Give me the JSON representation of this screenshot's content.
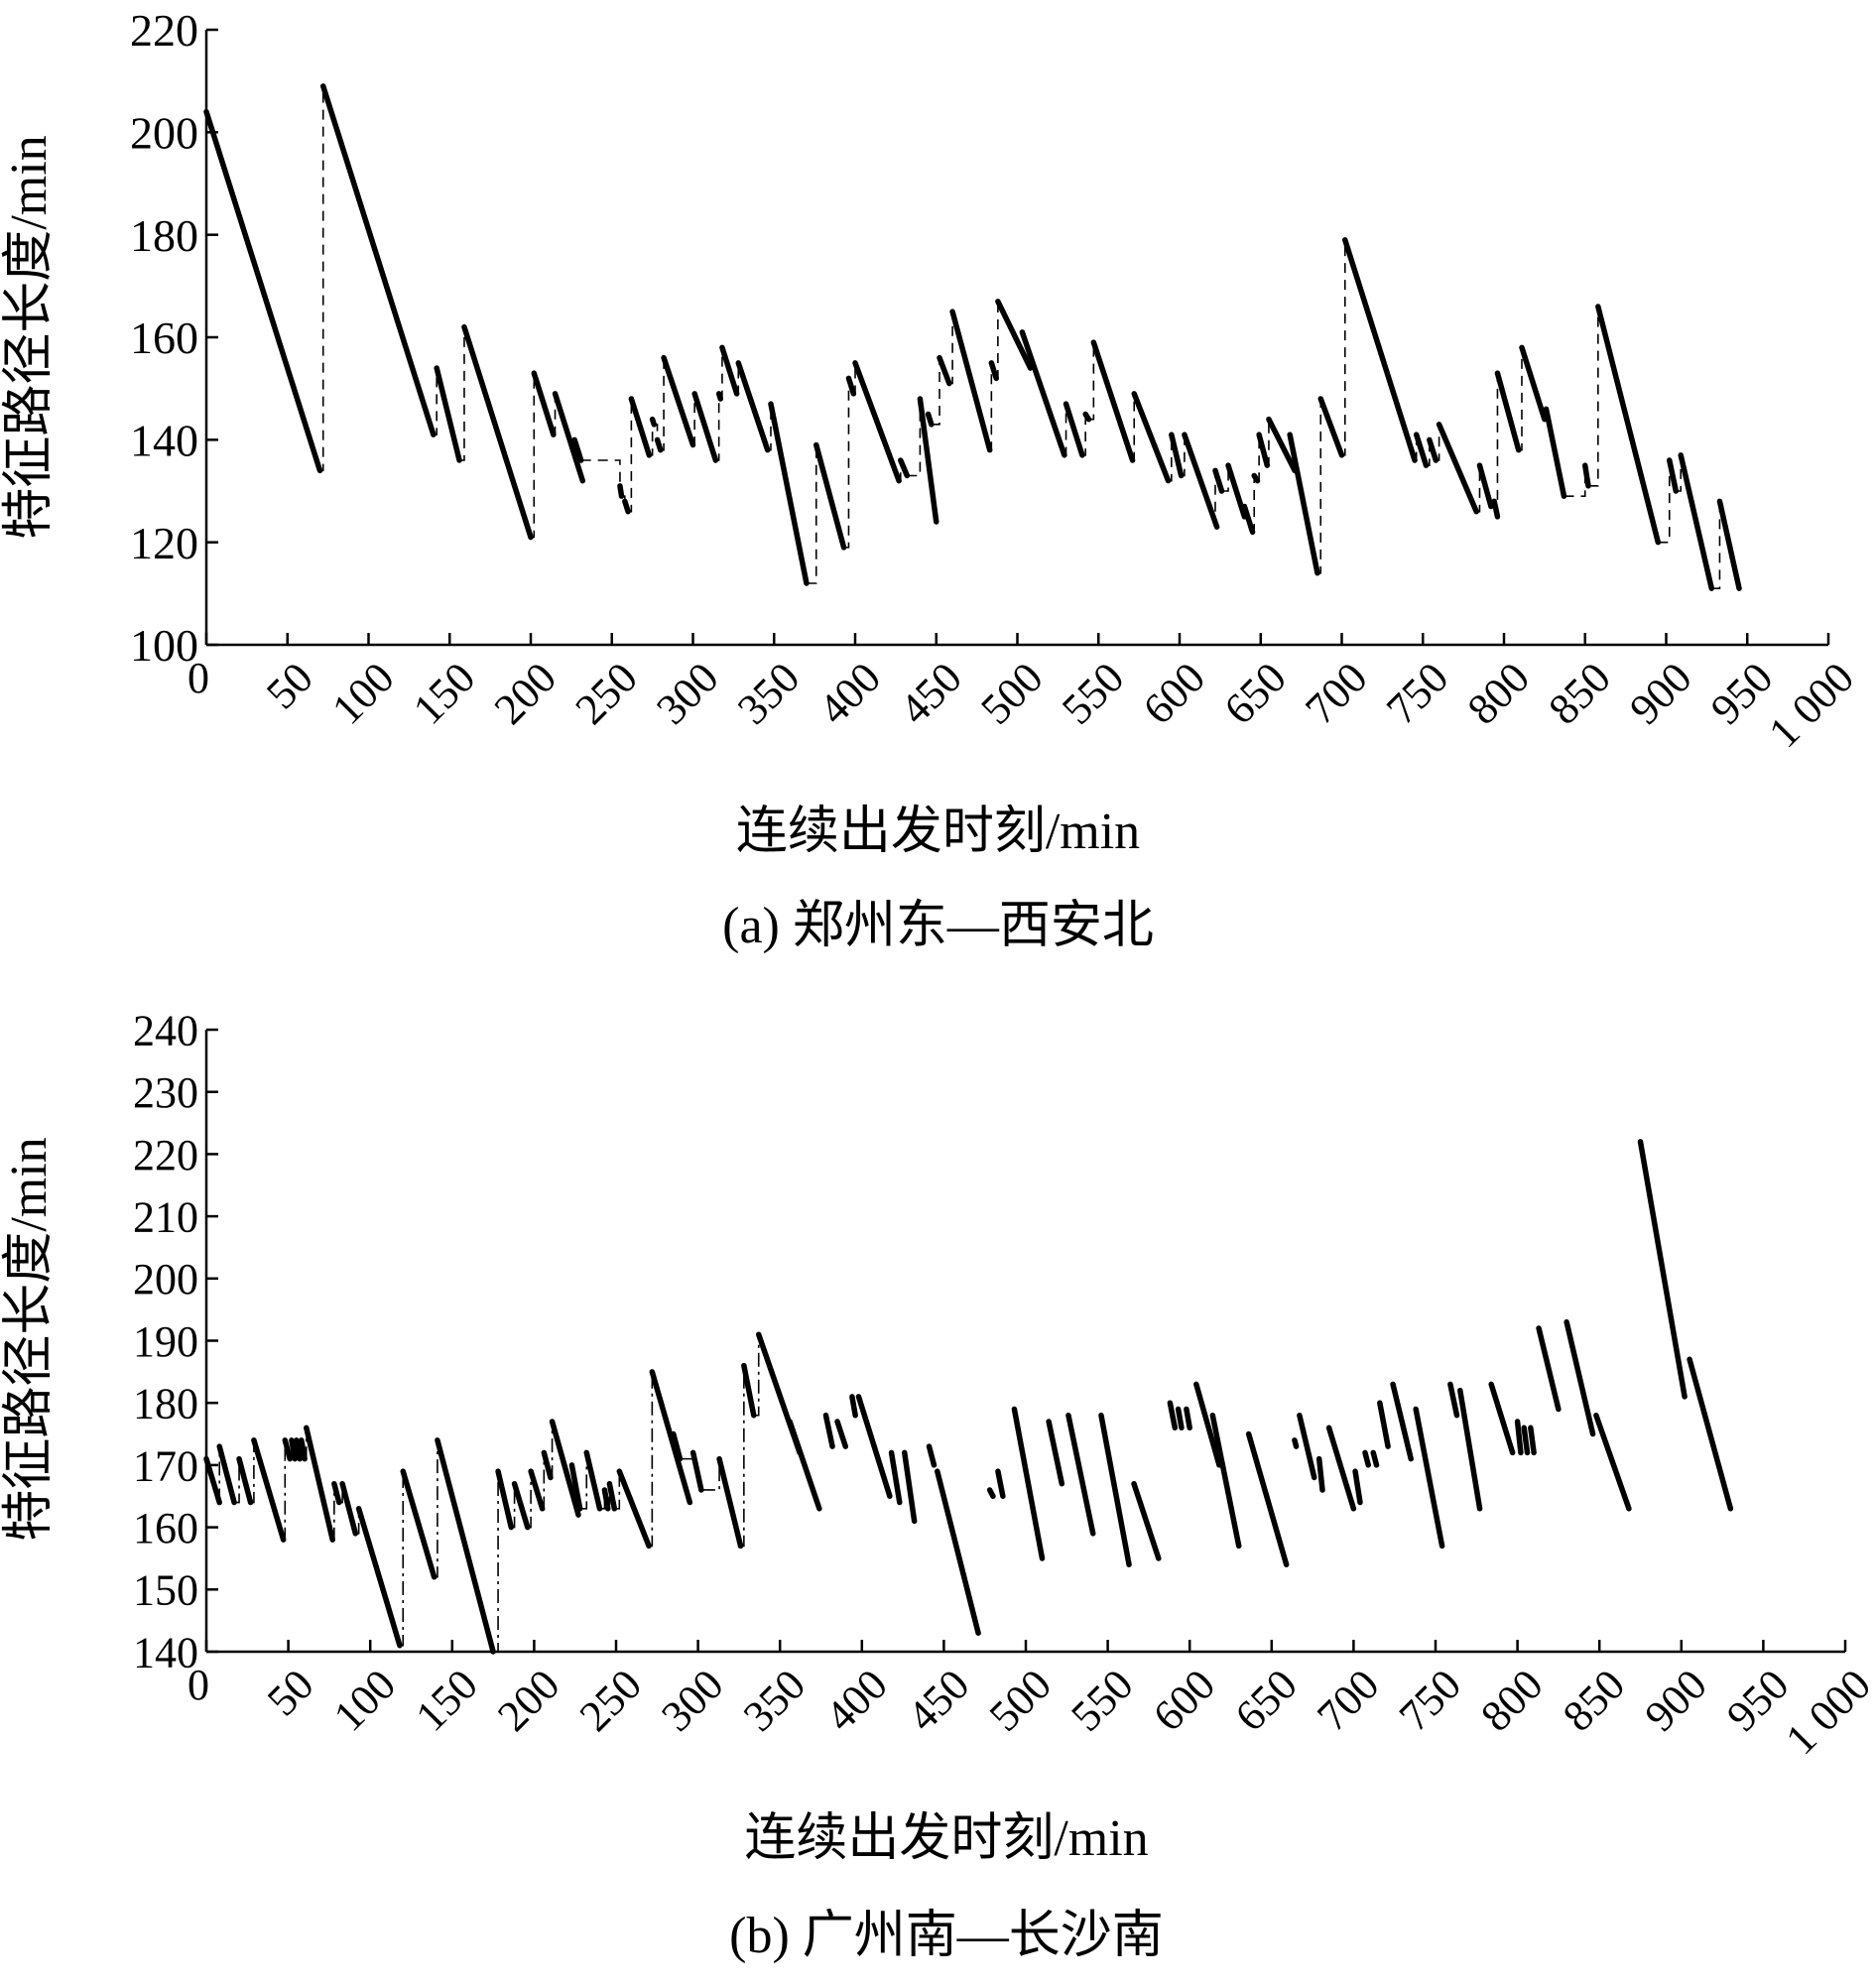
{
  "chart_data": [
    {
      "type": "line",
      "caption": "(a) 郑州东—西安北",
      "xlabel": "连续出发时刻/min",
      "ylabel": "特征路径长度/min",
      "xlim": [
        0,
        1000
      ],
      "ylim": [
        100,
        220
      ],
      "xticks": [
        0,
        50,
        100,
        150,
        200,
        250,
        300,
        350,
        400,
        450,
        500,
        550,
        600,
        650,
        700,
        750,
        800,
        850,
        900,
        950,
        1000
      ],
      "xtick_labels": [
        "0",
        "50",
        "100",
        "150",
        "200",
        "250",
        "300",
        "350",
        "400",
        "450",
        "500",
        "550",
        "600",
        "650",
        "700",
        "750",
        "800",
        "850",
        "900",
        "950",
        "1 000"
      ],
      "yticks": [
        100,
        120,
        140,
        160,
        180,
        200,
        220
      ],
      "connector_style": "dashed",
      "segments": [
        [
          [
            0,
            204
          ],
          [
            70,
            134
          ]
        ],
        [
          [
            72,
            209
          ],
          [
            140,
            141
          ]
        ],
        [
          [
            142,
            154
          ],
          [
            156,
            136
          ]
        ],
        [
          [
            159,
            162
          ],
          [
            200,
            121
          ]
        ],
        [
          [
            202,
            153
          ],
          [
            214,
            141
          ]
        ],
        [
          [
            215,
            149
          ],
          [
            232,
            132
          ]
        ],
        [
          [
            227,
            140
          ],
          [
            231,
            136
          ]
        ],
        [
          [
            255,
            131
          ],
          [
            256,
            129
          ]
        ],
        [
          [
            258,
            128
          ],
          [
            260,
            126
          ]
        ],
        [
          [
            262,
            148
          ],
          [
            273,
            137
          ]
        ],
        [
          [
            275,
            144
          ],
          [
            276,
            143
          ]
        ],
        [
          [
            278,
            140
          ],
          [
            280,
            138
          ]
        ],
        [
          [
            282,
            156
          ],
          [
            300,
            139
          ]
        ],
        [
          [
            301,
            149
          ],
          [
            314,
            136
          ]
        ],
        [
          [
            316,
            149
          ],
          [
            317,
            148
          ]
        ],
        [
          [
            318,
            158
          ],
          [
            327,
            149
          ]
        ],
        [
          [
            328,
            155
          ],
          [
            346,
            138
          ]
        ],
        [
          [
            348,
            147
          ],
          [
            370,
            112
          ]
        ],
        [
          [
            376,
            139
          ],
          [
            393,
            119
          ]
        ],
        [
          [
            396,
            152
          ],
          [
            399,
            149
          ]
        ],
        [
          [
            400,
            155
          ],
          [
            427,
            132
          ]
        ],
        [
          [
            428,
            136
          ],
          [
            432,
            133
          ]
        ],
        [
          [
            440,
            148
          ],
          [
            450,
            124
          ]
        ],
        [
          [
            445,
            145
          ],
          [
            447,
            143
          ]
        ],
        [
          [
            452,
            156
          ],
          [
            458,
            151
          ]
        ],
        [
          [
            460,
            165
          ],
          [
            483,
            138
          ]
        ],
        [
          [
            484,
            155
          ],
          [
            487,
            152
          ]
        ],
        [
          [
            488,
            167
          ],
          [
            508,
            154
          ]
        ],
        [
          [
            503,
            161
          ],
          [
            529,
            137
          ]
        ],
        [
          [
            530,
            147
          ],
          [
            540,
            137
          ]
        ],
        [
          [
            542,
            145
          ],
          [
            544,
            144
          ]
        ],
        [
          [
            547,
            159
          ],
          [
            571,
            136
          ]
        ],
        [
          [
            572,
            149
          ],
          [
            593,
            132
          ]
        ],
        [
          [
            595,
            141
          ],
          [
            601,
            133
          ]
        ],
        [
          [
            603,
            141
          ],
          [
            623,
            123
          ]
        ],
        [
          [
            622,
            134
          ],
          [
            626,
            130
          ]
        ],
        [
          [
            630,
            135
          ],
          [
            640,
            125
          ]
        ],
        [
          [
            640,
            127
          ],
          [
            645,
            122
          ]
        ],
        [
          [
            646,
            133
          ],
          [
            648,
            132
          ]
        ],
        [
          [
            649,
            141
          ],
          [
            654,
            135
          ]
        ],
        [
          [
            655,
            144
          ],
          [
            671,
            134
          ]
        ],
        [
          [
            668,
            141
          ],
          [
            685,
            114
          ]
        ],
        [
          [
            687,
            148
          ],
          [
            700,
            137
          ]
        ],
        [
          [
            702,
            179
          ],
          [
            745,
            136
          ]
        ],
        [
          [
            746,
            141
          ],
          [
            752,
            135
          ]
        ],
        [
          [
            754,
            140
          ],
          [
            758,
            136
          ]
        ],
        [
          [
            760,
            143
          ],
          [
            783,
            126
          ]
        ],
        [
          [
            785,
            135
          ],
          [
            792,
            127
          ]
        ],
        [
          [
            794,
            128
          ],
          [
            796,
            125
          ]
        ],
        [
          [
            796,
            153
          ],
          [
            809,
            138
          ]
        ],
        [
          [
            811,
            158
          ],
          [
            825,
            144
          ]
        ],
        [
          [
            826,
            146
          ],
          [
            837,
            129
          ]
        ],
        [
          [
            850,
            135
          ],
          [
            852,
            131
          ]
        ],
        [
          [
            858,
            166
          ],
          [
            895,
            120
          ]
        ],
        [
          [
            902,
            136
          ],
          [
            906,
            130
          ]
        ],
        [
          [
            909,
            137
          ],
          [
            928,
            111
          ]
        ],
        [
          [
            933,
            128
          ],
          [
            945,
            111
          ]
        ]
      ]
    },
    {
      "type": "line",
      "caption": "(b) 广州南—长沙南",
      "xlabel": "连续出发时刻/min",
      "ylabel": "特征路径长度/min",
      "xlim": [
        0,
        1000
      ],
      "ylim": [
        140,
        240
      ],
      "xticks": [
        0,
        50,
        100,
        150,
        200,
        250,
        300,
        350,
        400,
        450,
        500,
        550,
        600,
        650,
        700,
        750,
        800,
        850,
        900,
        950,
        1000
      ],
      "xtick_labels": [
        "0",
        "50",
        "100",
        "150",
        "200",
        "250",
        "300",
        "350",
        "400",
        "450",
        "500",
        "550",
        "600",
        "650",
        "700",
        "750",
        "800",
        "850",
        "900",
        "950",
        "1 000"
      ],
      "yticks": [
        140,
        150,
        160,
        170,
        180,
        190,
        200,
        210,
        220,
        230,
        240
      ],
      "connector_style": "dash-dot",
      "connector_end": 340,
      "segments": [
        [
          [
            0,
            171
          ],
          [
            8,
            164
          ]
        ],
        [
          [
            8,
            173
          ],
          [
            17,
            164
          ]
        ],
        [
          [
            20,
            171
          ],
          [
            27,
            164
          ]
        ],
        [
          [
            29,
            174
          ],
          [
            47,
            158
          ]
        ],
        [
          [
            48,
            174
          ],
          [
            51,
            171
          ]
        ],
        [
          [
            52,
            174
          ],
          [
            54,
            171
          ]
        ],
        [
          [
            55,
            174
          ],
          [
            57,
            171
          ]
        ],
        [
          [
            58,
            174
          ],
          [
            60,
            171
          ]
        ],
        [
          [
            61,
            176
          ],
          [
            77,
            158
          ]
        ],
        [
          [
            78,
            167
          ],
          [
            81,
            164
          ]
        ],
        [
          [
            83,
            167
          ],
          [
            91,
            159
          ]
        ],
        [
          [
            93,
            163
          ],
          [
            118,
            141
          ]
        ],
        [
          [
            120,
            169
          ],
          [
            139,
            152
          ]
        ],
        [
          [
            141,
            174
          ],
          [
            175,
            140
          ]
        ],
        [
          [
            178,
            169
          ],
          [
            186,
            160
          ]
        ],
        [
          [
            188,
            167
          ],
          [
            196,
            160
          ]
        ],
        [
          [
            198,
            169
          ],
          [
            205,
            163
          ]
        ],
        [
          [
            206,
            172
          ],
          [
            210,
            168
          ]
        ],
        [
          [
            211,
            177
          ],
          [
            227,
            162
          ]
        ],
        [
          [
            223,
            170
          ],
          [
            228,
            163
          ]
        ],
        [
          [
            232,
            172
          ],
          [
            240,
            163
          ]
        ],
        [
          [
            243,
            166
          ],
          [
            245,
            163
          ]
        ],
        [
          [
            246,
            167
          ],
          [
            249,
            163
          ]
        ],
        [
          [
            252,
            169
          ],
          [
            270,
            157
          ]
        ],
        [
          [
            272,
            185
          ],
          [
            295,
            164
          ]
        ],
        [
          [
            285,
            175
          ],
          [
            289,
            171
          ]
        ],
        [
          [
            297,
            172
          ],
          [
            302,
            166
          ]
        ],
        [
          [
            313,
            171
          ],
          [
            326,
            157
          ]
        ],
        [
          [
            328,
            186
          ],
          [
            334,
            178
          ]
        ],
        [
          [
            337,
            191
          ],
          [
            362,
            172
          ]
        ],
        [
          [
            356,
            177
          ],
          [
            374,
            163
          ]
        ],
        [
          [
            378,
            178
          ],
          [
            382,
            173
          ]
        ],
        [
          [
            385,
            177
          ],
          [
            390,
            173
          ]
        ],
        [
          [
            394,
            181
          ],
          [
            396,
            178
          ]
        ],
        [
          [
            398,
            181
          ],
          [
            417,
            165
          ]
        ],
        [
          [
            418,
            172
          ],
          [
            423,
            164
          ]
        ],
        [
          [
            426,
            172
          ],
          [
            432,
            161
          ]
        ],
        [
          [
            441,
            173
          ],
          [
            444,
            170
          ]
        ],
        [
          [
            446,
            169
          ],
          [
            471,
            143
          ]
        ],
        [
          [
            478,
            166
          ],
          [
            480,
            165
          ]
        ],
        [
          [
            483,
            169
          ],
          [
            486,
            165
          ]
        ],
        [
          [
            493,
            179
          ],
          [
            510,
            155
          ]
        ],
        [
          [
            514,
            177
          ],
          [
            522,
            167
          ]
        ],
        [
          [
            526,
            178
          ],
          [
            541,
            159
          ]
        ],
        [
          [
            546,
            178
          ],
          [
            563,
            154
          ]
        ],
        [
          [
            566,
            167
          ],
          [
            581,
            155
          ]
        ],
        [
          [
            588,
            180
          ],
          [
            591,
            176
          ]
        ],
        [
          [
            593,
            179
          ],
          [
            595,
            176
          ]
        ],
        [
          [
            598,
            179
          ],
          [
            600,
            176
          ]
        ],
        [
          [
            604,
            183
          ],
          [
            618,
            170
          ]
        ],
        [
          [
            614,
            178
          ],
          [
            630,
            157
          ]
        ],
        [
          [
            636,
            175
          ],
          [
            659,
            154
          ]
        ],
        [
          [
            664,
            174
          ],
          [
            665,
            173
          ]
        ],
        [
          [
            667,
            178
          ],
          [
            676,
            168
          ]
        ],
        [
          [
            679,
            171
          ],
          [
            681,
            166
          ]
        ],
        [
          [
            685,
            176
          ],
          [
            700,
            163
          ]
        ],
        [
          [
            701,
            169
          ],
          [
            704,
            164
          ]
        ],
        [
          [
            707,
            172
          ],
          [
            709,
            170
          ]
        ],
        [
          [
            712,
            172
          ],
          [
            714,
            170
          ]
        ],
        [
          [
            716,
            180
          ],
          [
            721,
            173
          ]
        ],
        [
          [
            724,
            183
          ],
          [
            735,
            171
          ]
        ],
        [
          [
            738,
            179
          ],
          [
            754,
            157
          ]
        ],
        [
          [
            759,
            183
          ],
          [
            763,
            178
          ]
        ],
        [
          [
            765,
            182
          ],
          [
            777,
            163
          ]
        ],
        [
          [
            784,
            183
          ],
          [
            797,
            172
          ]
        ],
        [
          [
            800,
            177
          ],
          [
            802,
            172
          ]
        ],
        [
          [
            804,
            176
          ],
          [
            806,
            172
          ]
        ],
        [
          [
            808,
            176
          ],
          [
            810,
            172
          ]
        ],
        [
          [
            813,
            192
          ],
          [
            825,
            179
          ]
        ],
        [
          [
            830,
            193
          ],
          [
            846,
            175
          ]
        ],
        [
          [
            848,
            178
          ],
          [
            868,
            163
          ]
        ],
        [
          [
            875,
            222
          ],
          [
            902,
            181
          ]
        ],
        [
          [
            905,
            187
          ],
          [
            930,
            163
          ]
        ]
      ]
    }
  ]
}
